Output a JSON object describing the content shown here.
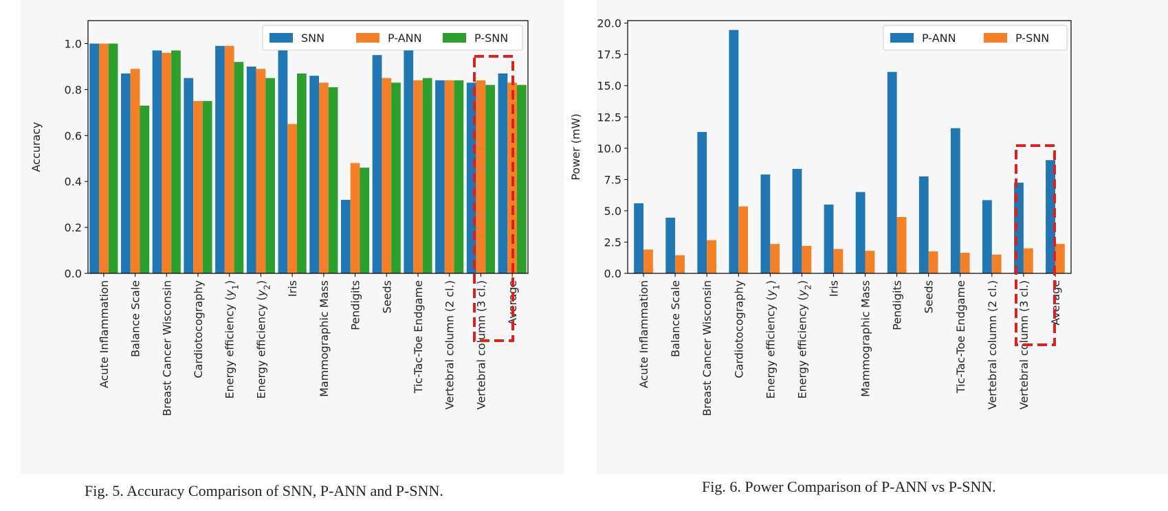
{
  "captions": {
    "fig5": "Fig. 5.  Accuracy Comparison of SNN, P-ANN and P-SNN.",
    "fig6": "Fig. 6.  Power Comparison of P-ANN vs P-SNN."
  },
  "colors": {
    "blue": "#1f77b4",
    "orange": "#f58025",
    "green": "#2ca02c",
    "highlight": "#e02020"
  },
  "chart_data": [
    {
      "type": "bar",
      "title": "",
      "xlabel": "",
      "ylabel": "Accuracy",
      "ylim": [
        0,
        1.1
      ],
      "yticks": [
        "0.0",
        "0.2",
        "0.4",
        "0.6",
        "0.8",
        "1.0"
      ],
      "grid": false,
      "legend": "top-right",
      "highlighted_category": "Average",
      "categories": [
        "Acute Inflammation",
        "Balance Scale",
        "Breast Cancer Wisconsin",
        "Cardiotocography",
        "Energy efficiency (y1)",
        "Energy efficiency (y2)",
        "Iris",
        "Mammographic Mass",
        "Pendigits",
        "Seeds",
        "Tic-Tac-Toe Endgame",
        "Vertebral column (2 cl.)",
        "Vertebral column (3 cl.)",
        "Average"
      ],
      "series": [
        {
          "name": "SNN",
          "color": "#1f77b4",
          "values": [
            1.0,
            0.87,
            0.97,
            0.85,
            0.99,
            0.9,
            0.97,
            0.86,
            0.32,
            0.95,
            0.97,
            0.84,
            0.83,
            0.87
          ]
        },
        {
          "name": "P-ANN",
          "color": "#f58025",
          "values": [
            1.0,
            0.89,
            0.96,
            0.75,
            0.99,
            0.89,
            0.65,
            0.83,
            0.48,
            0.85,
            0.84,
            0.84,
            0.84,
            0.83
          ]
        },
        {
          "name": "P-SNN",
          "color": "#2ca02c",
          "values": [
            1.0,
            0.73,
            0.97,
            0.75,
            0.92,
            0.85,
            0.87,
            0.81,
            0.46,
            0.83,
            0.85,
            0.84,
            0.82,
            0.82
          ]
        }
      ]
    },
    {
      "type": "bar",
      "title": "",
      "xlabel": "",
      "ylabel": "Power (mW)",
      "ylim": [
        0,
        20.2
      ],
      "yticks": [
        "0.0",
        "2.5",
        "5.0",
        "7.5",
        "10.0",
        "12.5",
        "15.0",
        "17.5",
        "20.0"
      ],
      "grid": false,
      "legend": "top-right",
      "highlighted_category": "Average",
      "categories": [
        "Acute Inflammation",
        "Balance Scale",
        "Breast Cancer Wisconsin",
        "Cardiotocography",
        "Energy efficiency (y1)",
        "Energy efficiency (y2)",
        "Iris",
        "Mammographic Mass",
        "Pendigits",
        "Seeds",
        "Tic-Tac-Toe Endgame",
        "Vertebral column (2 cl.)",
        "Vertebral column (3 cl.)",
        "Average"
      ],
      "series": [
        {
          "name": "P-ANN",
          "color": "#1f77b4",
          "values": [
            5.6,
            4.45,
            11.3,
            19.45,
            7.9,
            8.35,
            5.5,
            6.5,
            16.1,
            7.75,
            11.6,
            5.85,
            7.25,
            9.05
          ]
        },
        {
          "name": "P-SNN",
          "color": "#f58025",
          "values": [
            1.9,
            1.45,
            2.65,
            5.35,
            2.35,
            2.2,
            1.95,
            1.8,
            4.5,
            1.75,
            1.65,
            1.5,
            2.0,
            2.35
          ]
        }
      ]
    }
  ]
}
